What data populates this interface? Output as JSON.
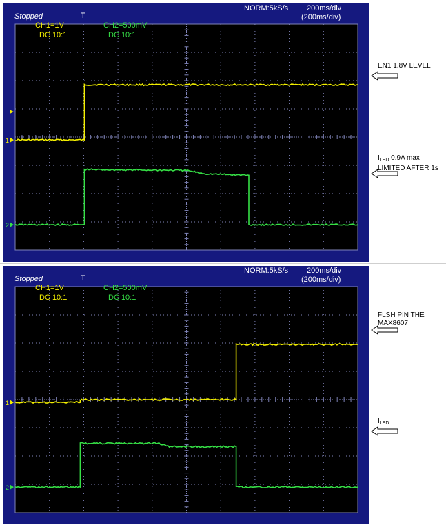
{
  "panels": [
    {
      "status": "Stopped",
      "trigger_marker": "T",
      "sample_rate": "NORM:5kS/s",
      "timebase": "200ms/div",
      "timebase_paren": "(200ms/div)",
      "ch1_scale": "CH1=1V",
      "ch1_coupling": "DC  10:1",
      "ch2_scale": "CH2=500mV",
      "ch2_coupling": "DC  10:1",
      "ch1_marker": "1",
      "ch2_marker": "2",
      "annotations": [
        {
          "main": "EN1 1.8V LEVEL",
          "sub": "",
          "line2": ""
        },
        {
          "main": "I",
          "sub": "LED",
          "tail": " 0.9A max",
          "line2": "LIMITED AFTER 1s"
        }
      ]
    },
    {
      "status": "Stopped",
      "trigger_marker": "T",
      "sample_rate": "NORM:5kS/s",
      "timebase": "200ms/div",
      "timebase_paren": "(200ms/div)",
      "ch1_scale": "CH1=1V",
      "ch1_coupling": "DC  10:1",
      "ch2_scale": "CH2=500mV",
      "ch2_coupling": "DC  10:1",
      "ch1_marker": "1",
      "ch2_marker": "2",
      "annotations": [
        {
          "main": "FLSH PIN THE",
          "sub": "",
          "line2": "MAX8607"
        },
        {
          "main": "I",
          "sub": "LED",
          "tail": "",
          "line2": ""
        }
      ]
    }
  ],
  "colors": {
    "screen_bg": "#15197f",
    "grid": "#7f83b8",
    "ch1": "#f4f000",
    "ch2": "#36e046",
    "header_text": "#ffffff"
  },
  "chart_data": [
    {
      "type": "line",
      "x_unit": "div",
      "xlim": [
        0,
        10
      ],
      "ylim": [
        -4,
        4
      ],
      "grid": true,
      "series": [
        {
          "name": "CH1=1V",
          "x": [
            0,
            2.02,
            2.02,
            10
          ],
          "y": [
            0,
            0,
            1.95,
            1.95
          ]
        },
        {
          "name": "CH2=500mV",
          "x": [
            0,
            2.02,
            2.02,
            5.0,
            5.55,
            6.82,
            6.82,
            10
          ],
          "y": [
            0,
            0,
            1.95,
            1.92,
            1.8,
            1.75,
            0,
            0
          ]
        }
      ]
    },
    {
      "type": "line",
      "x_unit": "div",
      "xlim": [
        0,
        10
      ],
      "ylim": [
        -4,
        4
      ],
      "grid": true,
      "series": [
        {
          "name": "CH1=1V",
          "x": [
            0,
            1.9,
            1.9,
            6.45,
            6.45,
            10
          ],
          "y": [
            0,
            0,
            0.1,
            0.1,
            2.05,
            2.05
          ]
        },
        {
          "name": "CH2=500mV",
          "x": [
            0,
            1.9,
            1.9,
            4.2,
            4.5,
            6.45,
            6.45,
            10
          ],
          "y": [
            0,
            0,
            1.55,
            1.55,
            1.43,
            1.43,
            0,
            0
          ]
        }
      ]
    }
  ]
}
